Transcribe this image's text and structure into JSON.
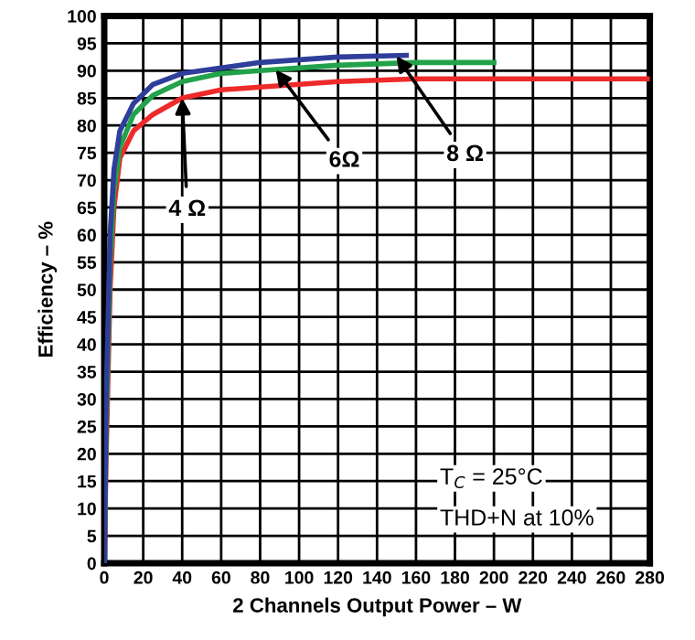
{
  "chart_data": {
    "type": "line",
    "xlabel": "2 Channels Output Power – W",
    "ylabel": "Efficiency – %",
    "xlim": [
      0,
      280
    ],
    "ylim": [
      0,
      100
    ],
    "xticks": [
      0,
      20,
      40,
      60,
      80,
      100,
      120,
      140,
      160,
      180,
      200,
      220,
      240,
      260,
      280
    ],
    "yticks": [
      0,
      5,
      10,
      15,
      20,
      25,
      30,
      35,
      40,
      45,
      50,
      55,
      60,
      65,
      70,
      75,
      80,
      85,
      90,
      95,
      100
    ],
    "grid": true,
    "legend": false,
    "marker": "none",
    "line_style": "solid",
    "series": [
      {
        "color": "#ee2a2a",
        "x": [
          0,
          1,
          3,
          5,
          8,
          15,
          25,
          40,
          60,
          80,
          120,
          160,
          200,
          240,
          280
        ],
        "values": [
          0,
          20,
          50,
          65,
          74,
          79,
          82,
          85,
          86.5,
          87,
          88,
          88.5,
          88.5,
          88.5,
          88.5
        ]
      },
      {
        "color": "#22a24a",
        "x": [
          0,
          1,
          3,
          5,
          8,
          15,
          25,
          40,
          60,
          80,
          120,
          160,
          200
        ],
        "values": [
          0,
          25,
          55,
          68,
          76,
          82,
          85.5,
          88,
          89.5,
          90,
          91,
          91.5,
          91.5
        ]
      },
      {
        "color": "#2e3e9a",
        "x": [
          0,
          1,
          3,
          5,
          8,
          15,
          25,
          40,
          60,
          80,
          120,
          155
        ],
        "values": [
          0,
          30,
          60,
          72,
          79,
          84,
          87.5,
          89.5,
          90.5,
          91.5,
          92.5,
          92.8
        ]
      }
    ],
    "annotations": [
      {
        "text": "4 Ω",
        "x": 40,
        "y": 85
      },
      {
        "text": "6Ω",
        "x": 88,
        "y": 90.2
      },
      {
        "text": "8 Ω",
        "x": 150,
        "y": 92.7
      },
      "T$_{C}$ = 25°C",
      "THD+N at 10%"
    ]
  }
}
